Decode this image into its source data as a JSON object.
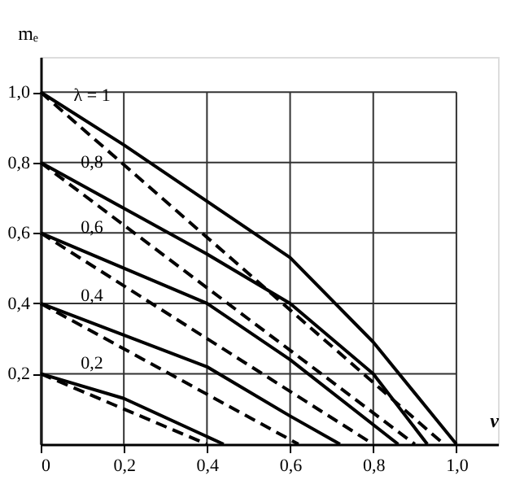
{
  "chart_data": {
    "type": "line",
    "xlabel": "v",
    "ylabel": "mₑ",
    "xlim": [
      0,
      1.1
    ],
    "ylim": [
      0,
      1.1
    ],
    "xticks": [
      0,
      {
        "value": 0.2,
        "label": "0,2"
      },
      {
        "value": 0.4,
        "label": "0,4"
      },
      {
        "value": 0.6,
        "label": "0,6"
      },
      {
        "value": 0.8,
        "label": "0,8"
      },
      {
        "value": 1.0,
        "label": "1,0"
      }
    ],
    "yticks": [
      {
        "value": 0.2,
        "label": "0,2"
      },
      {
        "value": 0.4,
        "label": "0,4"
      },
      {
        "value": 0.6,
        "label": "0,6"
      },
      {
        "value": 0.8,
        "label": "0,8"
      },
      {
        "value": 1.0,
        "label": "1,0"
      }
    ],
    "grid": true,
    "marker": "none",
    "series": [
      {
        "name": "λ = 1",
        "color": "#000000",
        "line_style": "solid",
        "x": [
          0,
          0.2,
          0.4,
          0.6,
          0.8,
          1.0
        ],
        "values": [
          1.0,
          0.85,
          0.69,
          0.53,
          0.29,
          0
        ]
      },
      {
        "color": "#000000",
        "line_style": "dashed",
        "x": [
          0,
          0.97
        ],
        "values": [
          1.0,
          0
        ]
      },
      {
        "name": "0,8",
        "color": "#000000",
        "line_style": "solid",
        "x": [
          0,
          0.2,
          0.4,
          0.6,
          0.8,
          0.93
        ],
        "values": [
          0.8,
          0.67,
          0.54,
          0.4,
          0.2,
          0
        ]
      },
      {
        "color": "#000000",
        "line_style": "dashed",
        "x": [
          0,
          0.9
        ],
        "values": [
          0.8,
          0
        ]
      },
      {
        "name": "0,6",
        "color": "#000000",
        "line_style": "solid",
        "x": [
          0,
          0.2,
          0.4,
          0.6,
          0.86
        ],
        "values": [
          0.6,
          0.5,
          0.4,
          0.24,
          0
        ]
      },
      {
        "color": "#000000",
        "line_style": "dashed",
        "x": [
          0,
          0.8
        ],
        "values": [
          0.6,
          0
        ]
      },
      {
        "name": "0,4",
        "color": "#000000",
        "line_style": "solid",
        "x": [
          0,
          0.2,
          0.4,
          0.6,
          0.72
        ],
        "values": [
          0.4,
          0.31,
          0.22,
          0.08,
          0
        ]
      },
      {
        "color": "#000000",
        "line_style": "dashed",
        "x": [
          0,
          0.62
        ],
        "values": [
          0.4,
          0
        ]
      },
      {
        "name": "0,2",
        "color": "#000000",
        "line_style": "solid",
        "x": [
          0,
          0.2,
          0.44
        ],
        "values": [
          0.2,
          0.13,
          0
        ]
      },
      {
        "color": "#000000",
        "line_style": "dashed",
        "x": [
          0,
          0.4
        ],
        "values": [
          0.2,
          0
        ]
      }
    ]
  }
}
